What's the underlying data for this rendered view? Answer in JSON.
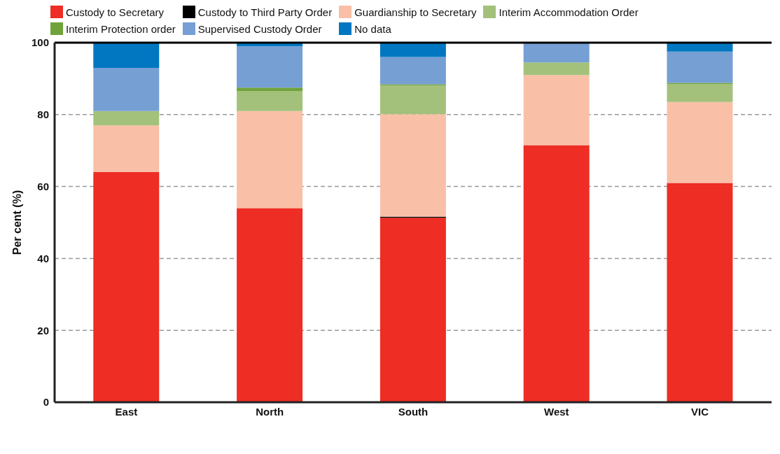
{
  "chart_data": {
    "type": "bar",
    "stacked": true,
    "ylabel": "Per cent (%)",
    "categories": [
      "East",
      "North",
      "South",
      "West",
      "VIC"
    ],
    "series": [
      {
        "name": "Custody to Secretary",
        "color": "#ee2d24",
        "values": [
          64,
          54,
          51.3,
          71.5,
          61
        ]
      },
      {
        "name": "Custody to Third Party Order",
        "color": "#000000",
        "values": [
          0,
          0,
          0.3,
          0,
          0
        ]
      },
      {
        "name": "Guardianship to Secretary",
        "color": "#f9c0a7",
        "values": [
          13,
          27,
          28.5,
          19.5,
          22.5
        ]
      },
      {
        "name": "Interim Accommodation Order",
        "color": "#a3c17b",
        "values": [
          4,
          5.5,
          8,
          3.5,
          5
        ]
      },
      {
        "name": "Interim Protection order",
        "color": "#6fa33a",
        "values": [
          0,
          1,
          0.3,
          0,
          0.3
        ]
      },
      {
        "name": "Supervised Custody Order",
        "color": "#769fd4",
        "values": [
          12,
          11.5,
          7.6,
          5.5,
          8.7
        ]
      },
      {
        "name": "No data",
        "color": "#0077c0",
        "values": [
          7,
          1,
          4,
          0,
          2.5
        ]
      }
    ],
    "ylim": [
      0,
      100
    ],
    "yticks": [
      0,
      20,
      40,
      60,
      80,
      100
    ],
    "grid": "y",
    "legend": "top"
  }
}
